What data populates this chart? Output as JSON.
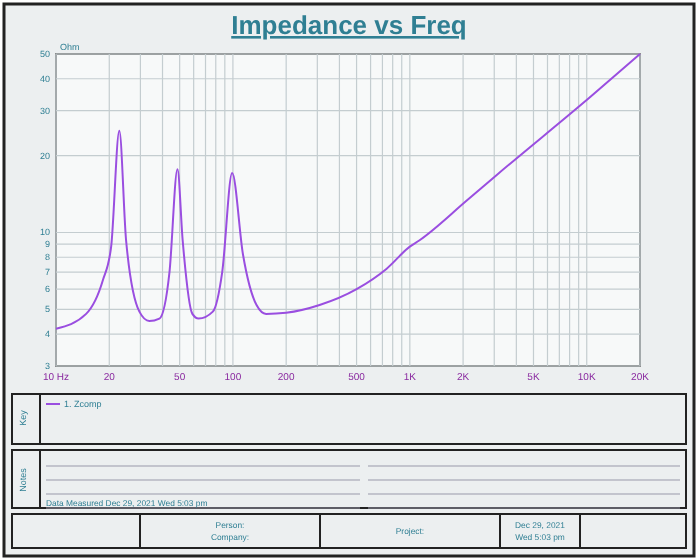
{
  "chart_data": {
    "type": "line",
    "title": "Impedance vs Freq",
    "ylabel": "Ohm",
    "log": "xy",
    "grid": true,
    "legend": "bottom",
    "line_style": "solid",
    "xlim": [
      10,
      20000
    ],
    "ylim": [
      3,
      50
    ],
    "xticks": [
      {
        "value": 10,
        "label": "10 Hz"
      },
      20,
      {
        "value": 30,
        "label": null
      },
      {
        "value": 40,
        "label": null
      },
      50,
      {
        "value": 60,
        "label": null
      },
      {
        "value": 70,
        "label": null
      },
      {
        "value": 80,
        "label": null
      },
      {
        "value": 90,
        "label": null
      },
      100,
      200,
      {
        "value": 300,
        "label": null
      },
      {
        "value": 400,
        "label": null
      },
      500,
      {
        "value": 600,
        "label": null
      },
      {
        "value": 700,
        "label": null
      },
      {
        "value": 800,
        "label": null
      },
      {
        "value": 900,
        "label": null
      },
      {
        "value": 1000,
        "label": "1K"
      },
      {
        "value": 2000,
        "label": "2K"
      },
      {
        "value": 3000,
        "label": null
      },
      {
        "value": 4000,
        "label": null
      },
      {
        "value": 5000,
        "label": "5K"
      },
      {
        "value": 6000,
        "label": null
      },
      {
        "value": 7000,
        "label": null
      },
      {
        "value": 8000,
        "label": null
      },
      {
        "value": 9000,
        "label": null
      },
      {
        "value": 10000,
        "label": "10K"
      },
      {
        "value": 20000,
        "label": "20K"
      }
    ],
    "yticks": [
      3,
      4,
      5,
      6,
      7,
      8,
      9,
      10,
      20,
      30,
      40,
      50
    ],
    "series": [
      {
        "name": "1. Zcomp",
        "color": "#9a4ee0",
        "x": [
          10,
          14.8,
          18.4,
          20.5,
          22.8,
          24.9,
          29.6,
          33.7,
          38.4,
          43.8,
          48.6,
          52,
          59,
          64,
          77,
          87,
          99,
          114,
          136,
          154,
          200,
          309,
          500,
          737,
          1000,
          1130,
          2090,
          3100,
          10500,
          20000
        ],
        "values": [
          4.2,
          4.8,
          6.5,
          8.8,
          25,
          9.3,
          4.9,
          4.5,
          4.6,
          7,
          17.7,
          9.3,
          4.8,
          4.6,
          4.9,
          7,
          17.1,
          8.2,
          5.2,
          4.8,
          4.85,
          5.2,
          6,
          7.2,
          8.8,
          9.3,
          13.3,
          16.8,
          34,
          50
        ]
      }
    ],
    "annotations": [
      "Key",
      "Notes",
      "Data Measured Dec 29, 2021 Wed 5:03 pm",
      "Person:",
      "Company:",
      "Project:",
      "Dec 29, 2021",
      "Wed 5:03 pm"
    ]
  }
}
